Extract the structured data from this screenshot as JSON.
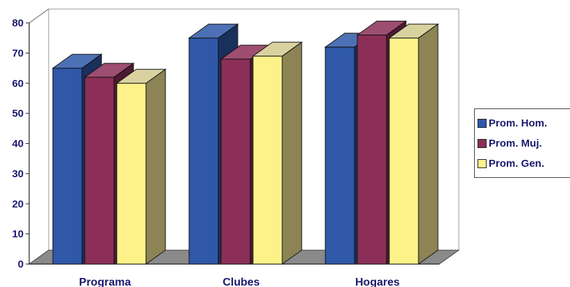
{
  "chart_data": {
    "type": "bar",
    "title": "",
    "xlabel": "",
    "ylabel": "",
    "categories": [
      "Programa",
      "Clubes",
      "Hogares"
    ],
    "series": [
      {
        "name": "Prom. Hom.",
        "values": [
          65,
          75,
          72
        ],
        "color": "#2f58a8"
      },
      {
        "name": "Prom. Muj.",
        "values": [
          62,
          68,
          76
        ],
        "color": "#8c2f58"
      },
      {
        "name": "Prom. Gen.",
        "values": [
          60,
          69,
          75
        ],
        "color": "#fdf28a"
      }
    ],
    "ylim": [
      0,
      80
    ],
    "yticks": [
      "0",
      "10",
      "20",
      "30",
      "40",
      "50",
      "60",
      "70",
      "80"
    ],
    "grid": false,
    "legend": "right",
    "style": "3d-clustered"
  }
}
